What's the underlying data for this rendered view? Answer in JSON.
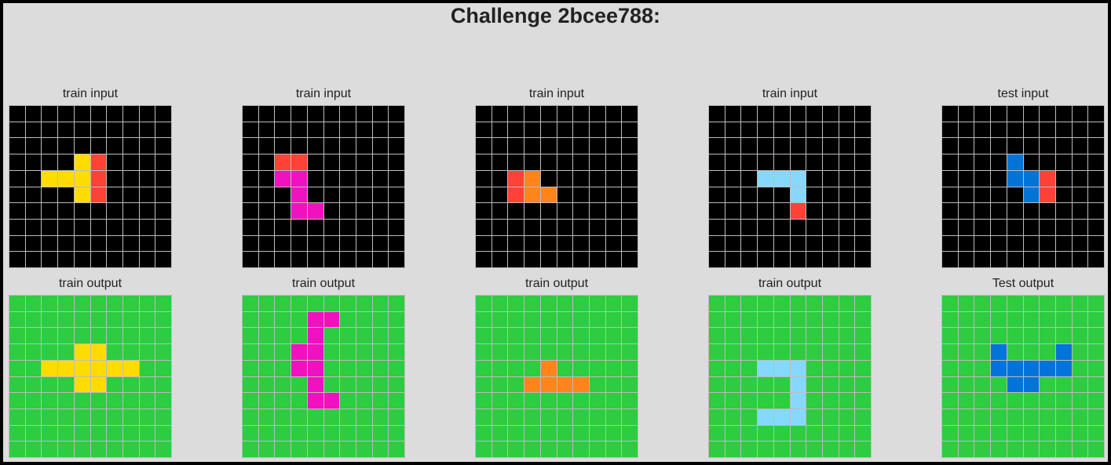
{
  "title": "Challenge 2bcee788:",
  "colors": {
    "0": "#000000",
    "1": "#0074d9",
    "2": "#ff4136",
    "3": "#2ecc40",
    "4": "#ffdc00",
    "6": "#f012be",
    "7": "#ff851b",
    "8": "#87d8ff"
  },
  "top_row": [
    {
      "label": "train input",
      "grid": [
        "0000000000",
        "0000000000",
        "0000000000",
        "0000420000",
        "0044420000",
        "0000420000",
        "0000000000",
        "0000000000",
        "0000000000",
        "0000000000"
      ]
    },
    {
      "label": "train input",
      "grid": [
        "0000000000",
        "0000000000",
        "0000000000",
        "0022000000",
        "0066000000",
        "0006000000",
        "0006600000",
        "0000000000",
        "0000000000",
        "0000000000"
      ]
    },
    {
      "label": "train input",
      "grid": [
        "0000000000",
        "0000000000",
        "0000000000",
        "0000000000",
        "0027000000",
        "0027700000",
        "0000000000",
        "0000000000",
        "0000000000",
        "0000000000"
      ]
    },
    {
      "label": "train input",
      "grid": [
        "0000000000",
        "0000000000",
        "0000000000",
        "0000000000",
        "0008880000",
        "0000080000",
        "0000020000",
        "0000000000",
        "0000000000",
        "0000000000"
      ]
    },
    {
      "label": "test input",
      "grid": [
        "0000000000",
        "0000000000",
        "0000000000",
        "0000100000",
        "0000112000",
        "0000012000",
        "0000000000",
        "0000000000",
        "0000000000",
        "0000000000"
      ]
    }
  ],
  "bottom_row": [
    {
      "label": "train output",
      "grid": [
        "3333333333",
        "3333333333",
        "3333333333",
        "3333443333",
        "3344444433",
        "3333443333",
        "3333333333",
        "3333333333",
        "3333333333",
        "3333333333"
      ]
    },
    {
      "label": "train output",
      "grid": [
        "3333333333",
        "3333663333",
        "3333633333",
        "3336633333",
        "3336633333",
        "3333633333",
        "3333663333",
        "3333333333",
        "3333333333",
        "3333333333"
      ]
    },
    {
      "label": "train output",
      "grid": [
        "3333333333",
        "3333333333",
        "3333333333",
        "3333333333",
        "3333733333",
        "3337777333",
        "3333333333",
        "3333333333",
        "3333333333",
        "3333333333"
      ]
    },
    {
      "label": "train output",
      "grid": [
        "3333333333",
        "3333333333",
        "3333333333",
        "3333333333",
        "3338883333",
        "3333383333",
        "3333383333",
        "3338883333",
        "3333333333",
        "3333333333"
      ]
    },
    {
      "label": "Test output",
      "grid": [
        "3333333333",
        "3333333333",
        "3333333333",
        "3331333133",
        "3331111133",
        "3333113333",
        "3333333333",
        "3333333333",
        "3333333333",
        "3333333333"
      ]
    }
  ]
}
